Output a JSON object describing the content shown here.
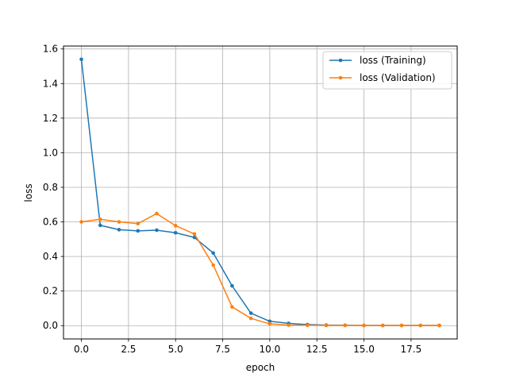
{
  "chart_data": {
    "type": "line",
    "title": "",
    "xlabel": "epoch",
    "ylabel": "loss",
    "xlim": [
      -0.95,
      19.95
    ],
    "ylim": [
      -0.077,
      1.617
    ],
    "xticks": [
      0.0,
      2.5,
      5.0,
      7.5,
      10.0,
      12.5,
      15.0,
      17.5
    ],
    "xtick_labels": [
      "0.0",
      "2.5",
      "5.0",
      "7.5",
      "10.0",
      "12.5",
      "15.0",
      "17.5"
    ],
    "yticks": [
      0.0,
      0.2,
      0.4,
      0.6,
      0.8,
      1.0,
      1.2,
      1.4,
      1.6
    ],
    "ytick_labels": [
      "0.0",
      "0.2",
      "0.4",
      "0.6",
      "0.8",
      "1.0",
      "1.2",
      "1.4",
      "1.6"
    ],
    "grid": true,
    "legend_position": "top-right",
    "x": [
      0,
      1,
      2,
      3,
      4,
      5,
      6,
      7,
      8,
      9,
      10,
      11,
      12,
      13,
      14,
      15,
      16,
      17,
      18,
      19
    ],
    "series": [
      {
        "name": "loss (Training)",
        "color": "#1f77b4",
        "values": [
          1.54,
          0.58,
          0.555,
          0.548,
          0.552,
          0.537,
          0.51,
          0.42,
          0.23,
          0.072,
          0.025,
          0.013,
          0.006,
          0.003,
          0.002,
          0.001,
          0.001,
          0.001,
          0.001,
          0.001
        ]
      },
      {
        "name": "loss (Validation)",
        "color": "#ff7f0e",
        "values": [
          0.6,
          0.615,
          0.6,
          0.59,
          0.648,
          0.578,
          0.53,
          0.35,
          0.108,
          0.042,
          0.01,
          0.003,
          0.002,
          0.001,
          0.001,
          0.001,
          0.001,
          0.001,
          0.001,
          0.001
        ]
      }
    ]
  }
}
